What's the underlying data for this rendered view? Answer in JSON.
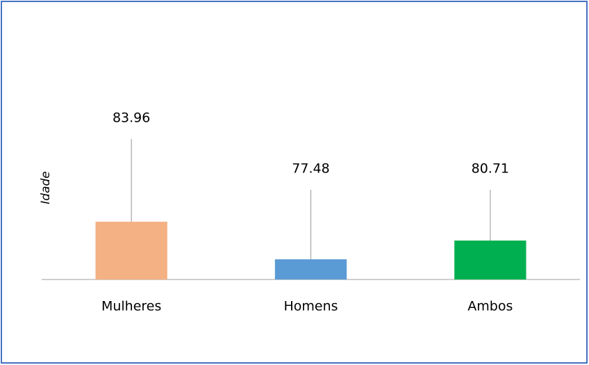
{
  "chart_data": {
    "type": "bar",
    "y_label": "Idade",
    "categories": [
      "Mulheres",
      "Homens",
      "Ambos"
    ],
    "values": [
      83.96,
      77.48,
      80.71
    ],
    "colors": [
      "#f4b183",
      "#5b9bd5",
      "#00b050"
    ],
    "ylim": [
      74,
      100
    ]
  }
}
